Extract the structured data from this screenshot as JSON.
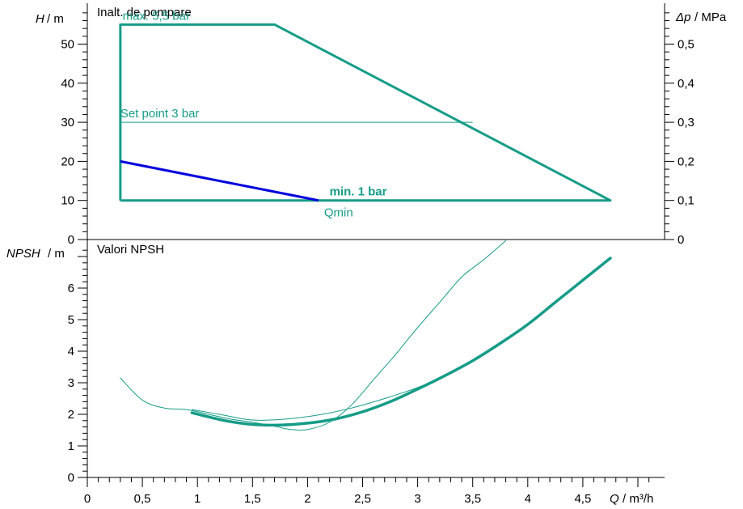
{
  "chart_data": [
    {
      "type": "line",
      "title": "Inalt. de pompare",
      "ylabel_symbol": "H",
      "ylabel_unit": "/  m",
      "y2label_symbol": "Δp",
      "y2label_unit": "/ MPa",
      "ylim": [
        0,
        59
      ],
      "xlim": [
        0,
        5.1
      ],
      "y_ticks": [
        0,
        10,
        20,
        30,
        40,
        50
      ],
      "y_tick_labels": [
        "0",
        "10",
        "20",
        "30",
        "40",
        "50"
      ],
      "y2_ticks": [
        0,
        10,
        20,
        30,
        40,
        50
      ],
      "y2_tick_labels": [
        "0",
        "0,1",
        "0,2",
        "0,3",
        "0,4",
        "0,5"
      ],
      "grid": false,
      "colors": {
        "envelope": "#159c87",
        "setpoint": "#159c87",
        "qmin": "#0000dd"
      },
      "series": [
        {
          "role": "envelope",
          "x": [
            0.3,
            0.3,
            1.7,
            4.75,
            0.3
          ],
          "y": [
            10,
            55,
            55,
            10,
            10
          ]
        },
        {
          "role": "setpoint",
          "x": [
            0.3,
            3.5
          ],
          "y": [
            30,
            30
          ]
        },
        {
          "role": "qmin",
          "x": [
            0.3,
            2.1
          ],
          "y": [
            20,
            10
          ]
        }
      ],
      "annotations": [
        {
          "text": "max. 5,5 bar",
          "x": 0.32,
          "y": 55
        },
        {
          "text": "Set point 3 bar",
          "x": 0.3,
          "y": 30
        },
        {
          "text": "min. 1 bar",
          "x": 2.2,
          "y": 10
        },
        {
          "text": "Qmin",
          "x": 2.15,
          "y": 10
        }
      ]
    },
    {
      "type": "line",
      "title": "Valori NPSH",
      "ylabel_symbol": "NPSH",
      "ylabel_unit": "/  m",
      "xlabel_symbol": "Q",
      "xlabel_unit": "/ m³/h",
      "ylim": [
        0,
        7.5
      ],
      "xlim": [
        0,
        5.1
      ],
      "y_ticks": [
        0,
        1,
        2,
        3,
        4,
        5,
        6
      ],
      "y_tick_labels": [
        "0",
        "1",
        "2",
        "3",
        "4",
        "5",
        "6"
      ],
      "x_ticks": [
        0,
        0.5,
        1,
        1.5,
        2,
        2.5,
        3,
        3.5,
        4,
        4.5
      ],
      "x_tick_labels": [
        "0",
        "0,5",
        "1",
        "1,5",
        "2",
        "2,5",
        "3",
        "3,5",
        "4",
        "4,5"
      ],
      "grid": false,
      "colors": {
        "curve": "#159c87"
      },
      "series": [
        {
          "role": "thick",
          "x": [
            0.95,
            1.25,
            1.5,
            1.75,
            2.0,
            2.25,
            2.5,
            2.75,
            3.0,
            3.25,
            3.5,
            3.75,
            4.0,
            4.25,
            4.5,
            4.75
          ],
          "y": [
            2.05,
            1.8,
            1.68,
            1.66,
            1.72,
            1.85,
            2.08,
            2.4,
            2.8,
            3.23,
            3.7,
            4.25,
            4.85,
            5.55,
            6.25,
            6.95
          ]
        },
        {
          "role": "thin1",
          "x": [
            0.3,
            0.5,
            0.7,
            0.9,
            1.1,
            1.3,
            1.5,
            1.7,
            1.85,
            2.0,
            2.2,
            2.4,
            2.6,
            2.8,
            3.0,
            3.2,
            3.4,
            3.6,
            3.8
          ],
          "y": [
            3.15,
            2.45,
            2.2,
            2.15,
            2.0,
            1.85,
            1.75,
            1.62,
            1.52,
            1.52,
            1.75,
            2.3,
            3.1,
            3.9,
            4.75,
            5.55,
            6.35,
            6.9,
            7.5
          ]
        },
        {
          "role": "thin2",
          "x": [
            0.95,
            1.2,
            1.5,
            1.8,
            2.1,
            2.4,
            2.7,
            3.0,
            3.3,
            3.5
          ],
          "y": [
            2.15,
            2.0,
            1.82,
            1.85,
            1.98,
            2.2,
            2.5,
            2.85,
            3.3,
            3.7
          ]
        }
      ]
    }
  ]
}
